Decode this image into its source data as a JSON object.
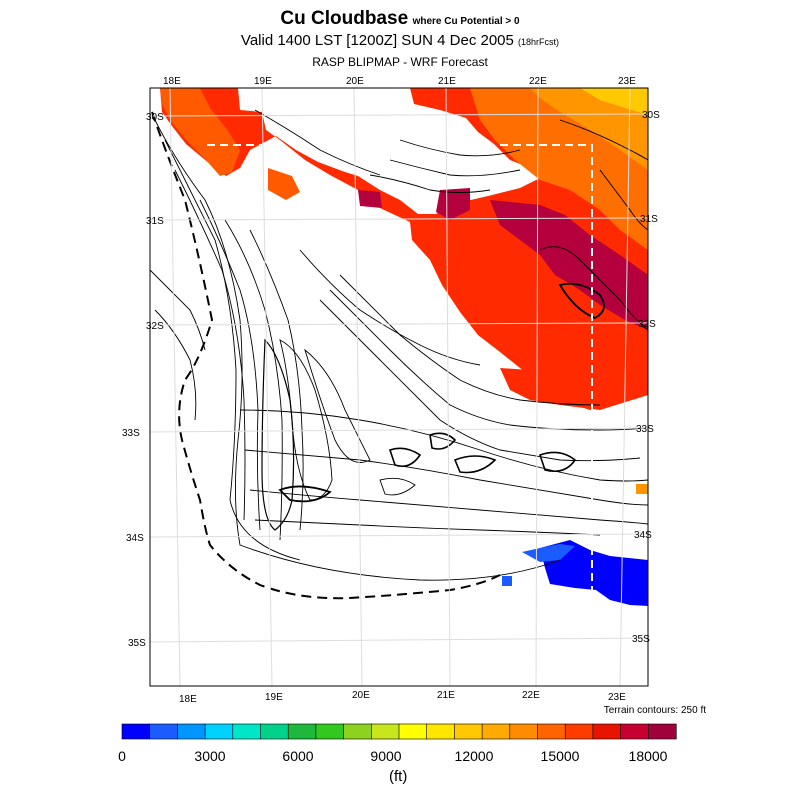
{
  "title": {
    "main": "Cu Cloudbase",
    "qualifier": "where Cu Potential > 0",
    "valid": "Valid 1400 LST [1200Z] SUN 4 Dec 2005",
    "forecast": "(18hrFcst)",
    "source": "RASP BLIPMAP - WRF Forecast"
  },
  "map": {
    "top_lon_labels": [
      "18E",
      "19E",
      "20E",
      "21E",
      "22E",
      "23E"
    ],
    "bottom_lon_labels": [
      "18E",
      "19E",
      "20E",
      "21E",
      "22E",
      "23E"
    ],
    "left_lat_labels": [
      "30S",
      "31S",
      "32S",
      "33S",
      "34S",
      "35S"
    ],
    "right_lat_labels": [
      "30S",
      "31S",
      "32S",
      "33S",
      "34S",
      "35S"
    ],
    "terrain_note": "Terrain contours: 250 ft",
    "contour_color": "#000000"
  },
  "colorbar": {
    "colors": [
      "#0000ff",
      "#1a5cff",
      "#0096ff",
      "#00d2ff",
      "#00e6c8",
      "#00d28c",
      "#1eb93c",
      "#32c81e",
      "#8cd21e",
      "#c8e61e",
      "#ffff00",
      "#ffe600",
      "#ffc800",
      "#ffaa00",
      "#ff8c00",
      "#ff6400",
      "#ff3c00",
      "#e61400",
      "#c80032",
      "#a0003c"
    ],
    "tick_labels": [
      "0",
      "3000",
      "6000",
      "9000",
      "12000",
      "15000",
      "18000"
    ],
    "unit": "(ft)"
  }
}
